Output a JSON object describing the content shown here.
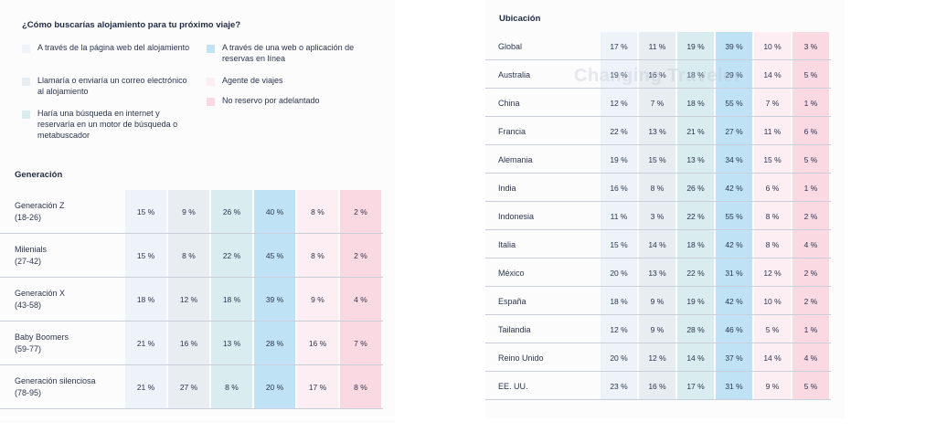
{
  "question": "¿Cómo buscarías alojamiento para tu próximo viaje?",
  "colors": [
    "#eef3fa",
    "#e7edf1",
    "#d9ecef",
    "#bfe3f4",
    "#fdeef3",
    "#fbd9e2"
  ],
  "legend": [
    {
      "label": "A través de la página web del alojamiento",
      "col": 0
    },
    {
      "label": "A través de una web o aplicación de reservas en línea",
      "col": 3
    },
    {
      "label": "Llamaría o enviaría un correo electrónico al alojamiento",
      "col": 1
    },
    {
      "label": "Agente de viajes",
      "col": 4
    },
    {
      "label": "Haría una búsqueda en internet y reservaría en un motor de búsqueda o metabuscador",
      "col": 2
    },
    {
      "label": "No reservo por adelantado",
      "col": 5
    }
  ],
  "generation": {
    "title": "Generación",
    "rows": [
      {
        "label": "Generación Z",
        "sub": "(18-26)",
        "values": [
          "15 %",
          "9 %",
          "26 %",
          "40 %",
          "8 %",
          "2 %"
        ]
      },
      {
        "label": "Milenials",
        "sub": "(27-42)",
        "values": [
          "15 %",
          "8 %",
          "22 %",
          "45 %",
          "8 %",
          "2 %"
        ]
      },
      {
        "label": "Generación X",
        "sub": "(43-58)",
        "values": [
          "18 %",
          "12 %",
          "18 %",
          "39 %",
          "9 %",
          "4 %"
        ]
      },
      {
        "label": "Baby Boomers",
        "sub": "(59-77)",
        "values": [
          "21 %",
          "16 %",
          "13 %",
          "28 %",
          "16 %",
          "7 %"
        ]
      },
      {
        "label": "Generación silenciosa",
        "sub": "(78-95)",
        "values": [
          "21 %",
          "27 %",
          "8 %",
          "20 %",
          "17 %",
          "8 %"
        ]
      }
    ]
  },
  "location": {
    "title": "Ubicación",
    "rows": [
      {
        "label": "Global",
        "values": [
          "17 %",
          "11 %",
          "19 %",
          "39 %",
          "10 %",
          "3 %"
        ]
      },
      {
        "label": "Australia",
        "values": [
          "19 %",
          "16 %",
          "18 %",
          "29 %",
          "14 %",
          "5 %"
        ]
      },
      {
        "label": "China",
        "values": [
          "12 %",
          "7 %",
          "18 %",
          "55 %",
          "7 %",
          "1 %"
        ]
      },
      {
        "label": "Francia",
        "values": [
          "22 %",
          "13 %",
          "21 %",
          "27 %",
          "11 %",
          "6 %"
        ]
      },
      {
        "label": "Alemania",
        "values": [
          "19 %",
          "15 %",
          "13 %",
          "34 %",
          "15 %",
          "5 %"
        ]
      },
      {
        "label": "India",
        "values": [
          "16 %",
          "8 %",
          "26 %",
          "42 %",
          "6 %",
          "1 %"
        ]
      },
      {
        "label": "Indonesia",
        "values": [
          "11 %",
          "3 %",
          "22 %",
          "55 %",
          "8 %",
          "2 %"
        ]
      },
      {
        "label": "Italia",
        "values": [
          "15 %",
          "14 %",
          "18 %",
          "42 %",
          "8 %",
          "4 %"
        ]
      },
      {
        "label": "México",
        "values": [
          "20 %",
          "13 %",
          "22 %",
          "31 %",
          "12 %",
          "2 %"
        ]
      },
      {
        "label": "España",
        "values": [
          "18 %",
          "9 %",
          "19 %",
          "42 %",
          "10 %",
          "2 %"
        ]
      },
      {
        "label": "Tailandia",
        "values": [
          "12 %",
          "9 %",
          "28 %",
          "46 %",
          "5 %",
          "1 %"
        ]
      },
      {
        "label": "Reino Unido",
        "values": [
          "20 %",
          "12 %",
          "14 %",
          "37 %",
          "14 %",
          "4 %"
        ]
      },
      {
        "label": "EE. UU.",
        "values": [
          "23 %",
          "16 %",
          "17 %",
          "31 %",
          "9 %",
          "5 %"
        ]
      }
    ]
  },
  "watermark": "Changing Traveler",
  "chart_data": [
    {
      "type": "table",
      "title": "Generación",
      "columns": [
        "A través de la página web del alojamiento",
        "Llamaría o enviaría un correo electrónico al alojamiento",
        "Haría una búsqueda en internet y reservaría en un motor de búsqueda o metabuscador",
        "A través de una web o aplicación de reservas en línea",
        "Agente de viajes",
        "No reservo por adelantado"
      ],
      "categories": [
        "Generación Z (18-26)",
        "Milenials (27-42)",
        "Generación X (43-58)",
        "Baby Boomers (59-77)",
        "Generación silenciosa (78-95)"
      ],
      "values": [
        [
          15,
          9,
          26,
          40,
          8,
          2
        ],
        [
          15,
          8,
          22,
          45,
          8,
          2
        ],
        [
          18,
          12,
          18,
          39,
          9,
          4
        ],
        [
          21,
          16,
          13,
          28,
          16,
          7
        ],
        [
          21,
          27,
          8,
          20,
          17,
          8
        ]
      ]
    },
    {
      "type": "table",
      "title": "Ubicación",
      "columns": [
        "A través de la página web del alojamiento",
        "Llamaría o enviaría un correo electrónico al alojamiento",
        "Haría una búsqueda en internet y reservaría en un motor de búsqueda o metabuscador",
        "A través de una web o aplicación de reservas en línea",
        "Agente de viajes",
        "No reservo por adelantado"
      ],
      "categories": [
        "Global",
        "Australia",
        "China",
        "Francia",
        "Alemania",
        "India",
        "Indonesia",
        "Italia",
        "México",
        "España",
        "Tailandia",
        "Reino Unido",
        "EE. UU."
      ],
      "values": [
        [
          17,
          11,
          19,
          39,
          10,
          3
        ],
        [
          19,
          16,
          18,
          29,
          14,
          5
        ],
        [
          12,
          7,
          18,
          55,
          7,
          1
        ],
        [
          22,
          13,
          21,
          27,
          11,
          6
        ],
        [
          19,
          15,
          13,
          34,
          15,
          5
        ],
        [
          16,
          8,
          26,
          42,
          6,
          1
        ],
        [
          11,
          3,
          22,
          55,
          8,
          2
        ],
        [
          15,
          14,
          18,
          42,
          8,
          4
        ],
        [
          20,
          13,
          22,
          31,
          12,
          2
        ],
        [
          18,
          9,
          19,
          42,
          10,
          2
        ],
        [
          12,
          9,
          28,
          46,
          5,
          1
        ],
        [
          20,
          12,
          14,
          37,
          14,
          4
        ],
        [
          23,
          16,
          17,
          31,
          9,
          5
        ]
      ]
    }
  ]
}
